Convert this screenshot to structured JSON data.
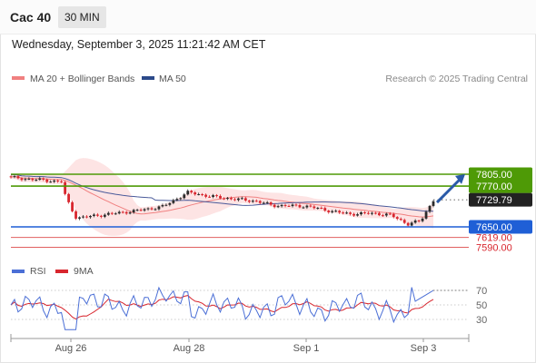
{
  "header": {
    "symbol": "Cac 40",
    "timeframe": "30 MIN"
  },
  "datetime": "Wednesday, September 3, 2025 11:21:42 AM CET",
  "legend": {
    "ma20": "MA 20 + Bollinger Bands",
    "ma50": "MA 50",
    "credit": "Research © 2025 Trading Central"
  },
  "rsi_legend": {
    "rsi": "RSI",
    "ma9": "9MA"
  },
  "colors": {
    "up": "#2b2b2b",
    "down": "#d8262e",
    "ma20": "#f08080",
    "ma50": "#4a5a9a",
    "band": "#fde4e4",
    "resistance": "#4e9a06",
    "support": "#1f5fd6",
    "arrow": "#2a5aa8",
    "rsi": "#4b6fd6",
    "rsi_ma": "#d8262e"
  },
  "chart_data": [
    {
      "type": "candlestick",
      "title": "Cac 40",
      "xlabels": [
        "Aug 26",
        "Aug 28",
        "Sep 1",
        "Sep 3"
      ],
      "ylim": [
        7575,
        7845
      ],
      "grid": false,
      "legend_position": "top-left",
      "current_price": 7729.79,
      "levels": [
        {
          "value": 7805.0,
          "label": "7805.00",
          "kind": "resistance"
        },
        {
          "value": 7770.0,
          "label": "7770.00",
          "kind": "resistance"
        },
        {
          "value": 7729.79,
          "label": "7729.79",
          "kind": "current"
        },
        {
          "value": 7650.0,
          "label": "7650.00",
          "kind": "support"
        },
        {
          "value": 7619.0,
          "label": "7619.00",
          "kind": "support-minor"
        },
        {
          "value": 7590.0,
          "label": "7590.00",
          "kind": "support-minor"
        }
      ],
      "series": [
        {
          "name": "MA 20 + Bollinger Bands"
        },
        {
          "name": "MA 50"
        }
      ],
      "forecast": "up"
    },
    {
      "type": "line",
      "title": "RSI",
      "xlabels": [
        "Aug 26",
        "Aug 28",
        "Sep 1",
        "Sep 3"
      ],
      "ylim": [
        5,
        80
      ],
      "yticks": [
        70,
        50,
        30
      ],
      "series": [
        {
          "name": "RSI"
        },
        {
          "name": "9MA"
        }
      ]
    }
  ]
}
